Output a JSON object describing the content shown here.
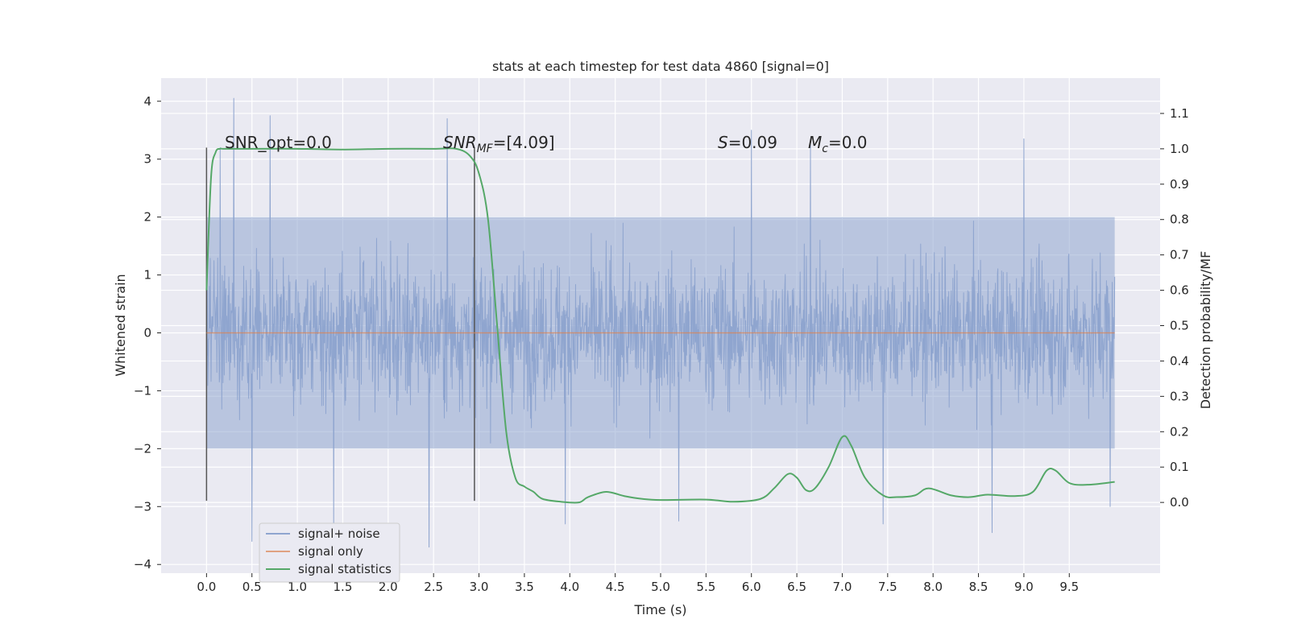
{
  "chart_data": {
    "type": "line",
    "title": "stats at each timestep for test data 4860 [signal=0]",
    "xlabel": "Time (s)",
    "ylabel_left": "Whitened strain",
    "ylabel_right": "Detection probability/MF",
    "xlim": [
      -0.5,
      10.5
    ],
    "ylim_left": [
      -4.15,
      4.4
    ],
    "ylim_right": [
      -0.2,
      1.2
    ],
    "x_ticks": [
      "0.0",
      "0.5",
      "1.0",
      "1.5",
      "2.0",
      "2.5",
      "3.0",
      "3.5",
      "4.0",
      "4.5",
      "5.0",
      "5.5",
      "6.0",
      "6.5",
      "7.0",
      "7.5",
      "8.0",
      "8.5",
      "9.0",
      "9.5"
    ],
    "y_ticks_left": [
      "−4",
      "−3",
      "−2",
      "−1",
      "0",
      "1",
      "2",
      "3",
      "4"
    ],
    "y_ticks_right": [
      "0.0",
      "0.1",
      "0.2",
      "0.3",
      "0.4",
      "0.5",
      "0.6",
      "0.7",
      "0.8",
      "0.9",
      "1.0",
      "1.1"
    ],
    "grid": true,
    "legend_position": "lower-left",
    "annotations": {
      "snr_opt": "SNR_opt=0.0",
      "snr_mf_main": "SNR",
      "snr_mf_sub": "MF",
      "snr_mf_value": "=[4.09]",
      "s_symbol": "S",
      "s_value": "=0.09",
      "mc_symbol": "M",
      "mc_sub": "c",
      "mc_value": "=0.0"
    },
    "vertical_markers": [
      0.0,
      2.95
    ],
    "series": [
      {
        "name": "signal+ noise",
        "color": "#8fa5cf",
        "axis": "left",
        "x_range": [
          0.0,
          10.0
        ],
        "envelope_upper": 2.0,
        "envelope_lower": -2.0,
        "peaks": [
          [
            0.3,
            4.05
          ],
          [
            0.7,
            3.75
          ],
          [
            0.15,
            3.2
          ],
          [
            2.65,
            3.7
          ],
          [
            6.0,
            3.5
          ],
          [
            6.65,
            3.25
          ],
          [
            9.0,
            3.35
          ],
          [
            0.5,
            -3.6
          ],
          [
            1.4,
            -3.3
          ],
          [
            2.45,
            -3.7
          ],
          [
            3.95,
            -3.3
          ],
          [
            5.2,
            -3.25
          ],
          [
            7.45,
            -3.3
          ],
          [
            8.65,
            -3.45
          ],
          [
            9.95,
            -3.0
          ]
        ]
      },
      {
        "name": "signal only",
        "color": "#dd8452",
        "axis": "left",
        "x": [
          0.0,
          10.0
        ],
        "y": [
          0.0,
          0.0
        ]
      },
      {
        "name": "signal statistics",
        "color": "#55a868",
        "axis": "right",
        "x": [
          0.0,
          0.05,
          0.1,
          0.15,
          0.2,
          0.5,
          1.0,
          1.5,
          2.0,
          2.5,
          2.75,
          2.9,
          3.0,
          3.1,
          3.2,
          3.3,
          3.4,
          3.5,
          3.6,
          3.7,
          3.9,
          4.1,
          4.2,
          4.4,
          4.6,
          4.8,
          5.0,
          5.5,
          5.8,
          6.1,
          6.25,
          6.4,
          6.5,
          6.6,
          6.7,
          6.85,
          7.0,
          7.1,
          7.25,
          7.45,
          7.6,
          7.8,
          7.95,
          8.2,
          8.4,
          8.6,
          8.9,
          9.1,
          9.25,
          9.35,
          9.5,
          9.7,
          10.0
        ],
        "y": [
          0.6,
          0.92,
          0.99,
          1.0,
          1.0,
          1.0,
          1.0,
          0.998,
          1.0,
          1.0,
          1.0,
          0.98,
          0.93,
          0.8,
          0.5,
          0.2,
          0.07,
          0.045,
          0.03,
          0.01,
          0.002,
          0.0,
          0.015,
          0.03,
          0.018,
          0.01,
          0.007,
          0.008,
          0.002,
          0.01,
          0.04,
          0.08,
          0.07,
          0.035,
          0.04,
          0.1,
          0.185,
          0.16,
          0.07,
          0.02,
          0.015,
          0.02,
          0.04,
          0.02,
          0.015,
          0.022,
          0.018,
          0.03,
          0.09,
          0.09,
          0.055,
          0.05,
          0.058
        ]
      }
    ]
  }
}
